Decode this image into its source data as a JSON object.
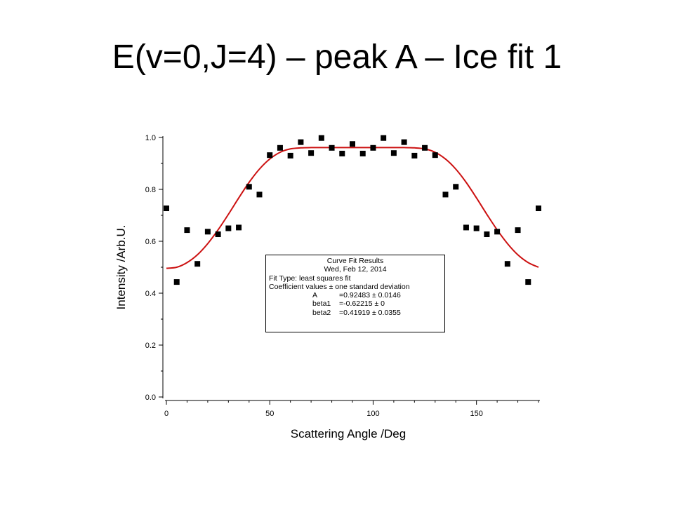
{
  "slide": {
    "title": "E(v=0,J=4) – peak A – Ice fit 1"
  },
  "fit_results": {
    "heading": "Curve Fit Results",
    "date": "Wed, Feb 12, 2014",
    "fit_type": "Fit Type: least squares fit",
    "coef_header": "Coefficient values ± one standard deviation",
    "coefficients": [
      {
        "name": "A",
        "value": "=0.92483 ± 0.0146"
      },
      {
        "name": "beta1",
        "value": "=-0.62215 ± 0"
      },
      {
        "name": "beta2",
        "value": "=0.41919 ± 0.0355"
      }
    ]
  },
  "colors": {
    "fit_line": "#cc1111",
    "points": "#000000"
  },
  "chart_data": {
    "type": "scatter",
    "xlabel": "Scattering Angle /Deg",
    "ylabel": "Intensity /Arb.U.",
    "xlim": [
      0,
      180
    ],
    "ylim": [
      0,
      1.0
    ],
    "x_ticks": [
      "0",
      "50",
      "100",
      "150"
    ],
    "x_tick_values": [
      0,
      50,
      100,
      150
    ],
    "y_ticks": [
      "0.0",
      "0.2",
      "0.4",
      "0.6",
      "0.8",
      "1.0"
    ],
    "y_tick_values": [
      0.0,
      0.2,
      0.4,
      0.6,
      0.8,
      1.0
    ],
    "grid": false,
    "series": [
      {
        "type": "scatter",
        "x": [
          0,
          5,
          10,
          15,
          20,
          25,
          30,
          35,
          40,
          45,
          50,
          55,
          60,
          65,
          70,
          75,
          80,
          85,
          90,
          95,
          100,
          105,
          110,
          115,
          120,
          125,
          130,
          135,
          140,
          145,
          150,
          155,
          160,
          165,
          170,
          175,
          180
        ],
        "y": [
          0.727,
          0.443,
          0.643,
          0.513,
          0.637,
          0.627,
          0.65,
          0.653,
          0.81,
          0.78,
          0.932,
          0.96,
          0.93,
          0.982,
          0.94,
          0.998,
          0.96,
          0.938,
          0.975,
          0.938,
          0.96,
          0.998,
          0.94,
          0.982,
          0.93,
          0.96,
          0.932,
          0.78,
          0.81,
          0.653,
          0.65,
          0.627,
          0.637,
          0.513,
          0.643,
          0.443,
          0.727
        ]
      },
      {
        "type": "line",
        "x": [
          0,
          5,
          10,
          15,
          20,
          25,
          30,
          35,
          40,
          45,
          50,
          55,
          60,
          65,
          70,
          75,
          80,
          85,
          90,
          95,
          100,
          105,
          110,
          115,
          120,
          125,
          130,
          135,
          140,
          145,
          150,
          155,
          160,
          165,
          170,
          175,
          180
        ],
        "y": [
          0.496,
          0.5,
          0.518,
          0.548,
          0.591,
          0.644,
          0.704,
          0.767,
          0.827,
          0.878,
          0.917,
          0.943,
          0.956,
          0.96,
          0.961,
          0.961,
          0.961,
          0.961,
          0.961,
          0.961,
          0.961,
          0.961,
          0.961,
          0.961,
          0.96,
          0.956,
          0.943,
          0.917,
          0.878,
          0.827,
          0.767,
          0.704,
          0.644,
          0.591,
          0.548,
          0.518,
          0.5
        ]
      }
    ]
  }
}
